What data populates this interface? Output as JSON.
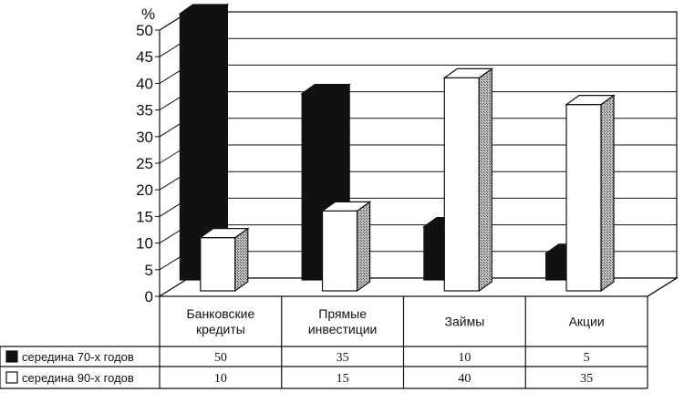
{
  "chart_data": {
    "type": "bar",
    "unit_label": "%",
    "categories": [
      [
        "Банковские",
        "кредиты"
      ],
      [
        "Прямые",
        "инвестиции"
      ],
      [
        "Займы"
      ],
      [
        "Акции"
      ]
    ],
    "series": [
      {
        "name": "середина 70-х годов",
        "values": [
          50,
          35,
          10,
          5
        ],
        "color": "#111111"
      },
      {
        "name": "середина 90-х годов",
        "values": [
          10,
          15,
          40,
          35
        ],
        "color": "#ffffff"
      }
    ],
    "ylim": [
      0,
      50
    ],
    "yticks": [
      0,
      5,
      10,
      15,
      20,
      25,
      30,
      35,
      40,
      45,
      50
    ],
    "grid": true,
    "legend": "table-left"
  }
}
